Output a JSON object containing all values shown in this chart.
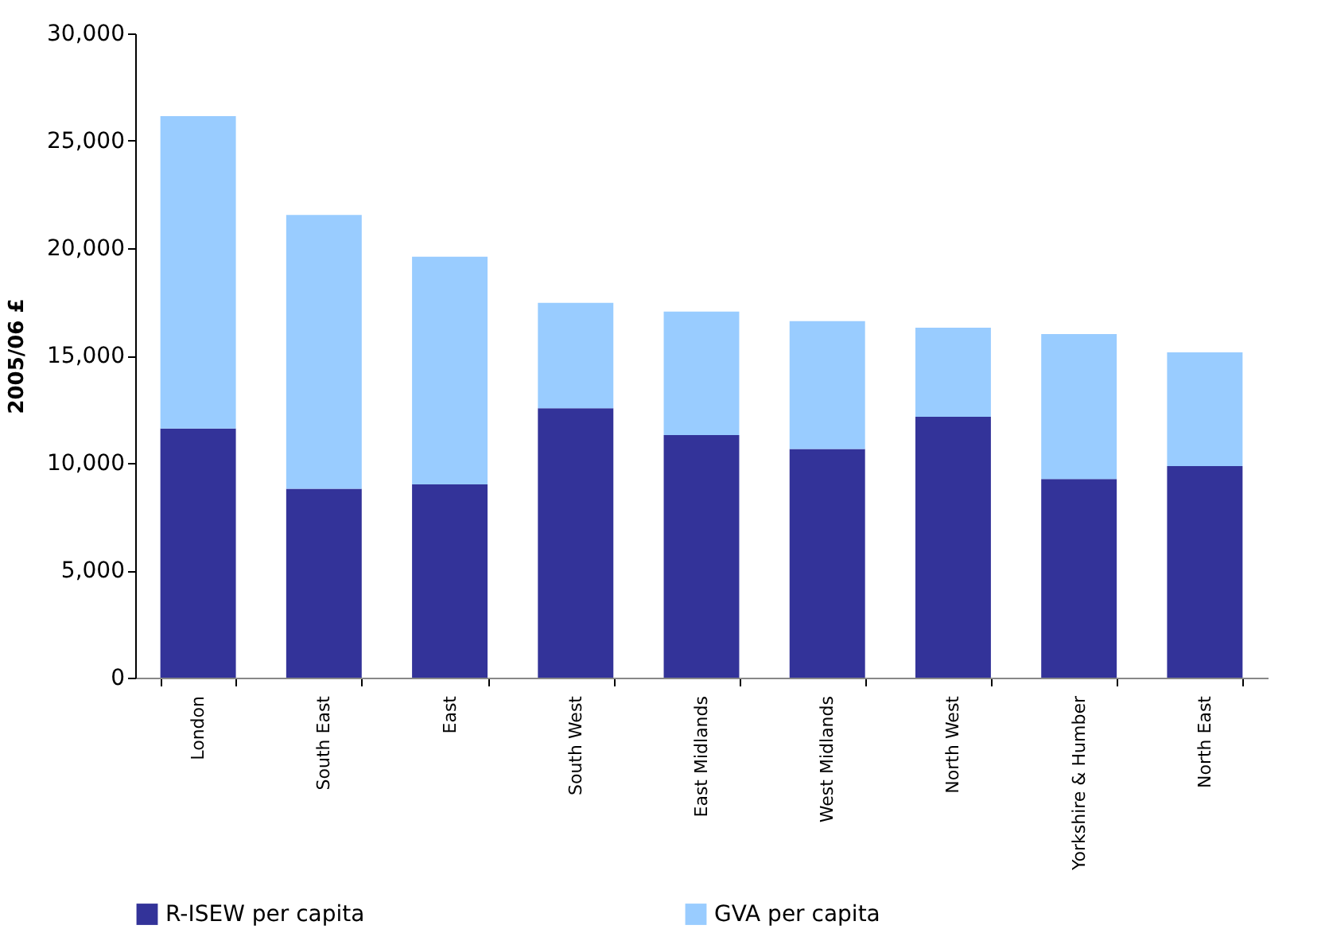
{
  "chart_data": {
    "type": "bar",
    "stacked": true,
    "ylabel": "2005/06 £",
    "categories": [
      "London",
      "South East",
      "East",
      "South West",
      "East Midlands",
      "West Midlands",
      "North West",
      "Yorkshire & Humber",
      "North East"
    ],
    "series": [
      {
        "name": "R-ISEW per capita",
        "color": "#333399",
        "values": [
          11600,
          8800,
          9000,
          12550,
          11300,
          10650,
          12150,
          9250,
          9850
        ]
      },
      {
        "name": "GVA per capita",
        "color": "#99ccff",
        "values": [
          14550,
          12750,
          10600,
          4900,
          5750,
          5950,
          4150,
          6750,
          5300
        ]
      }
    ],
    "ylim": [
      0,
      30000
    ],
    "yticks": [
      0,
      {
        "value": 5000,
        "label": "5,000"
      },
      {
        "value": 10000,
        "label": "10,000"
      },
      {
        "value": 15000,
        "label": "15,000"
      },
      {
        "value": 20000,
        "label": "20,000"
      },
      {
        "value": 25000,
        "label": "25,000"
      },
      {
        "value": 30000,
        "label": "30,000"
      }
    ],
    "grid": false,
    "legend": "bottom"
  }
}
